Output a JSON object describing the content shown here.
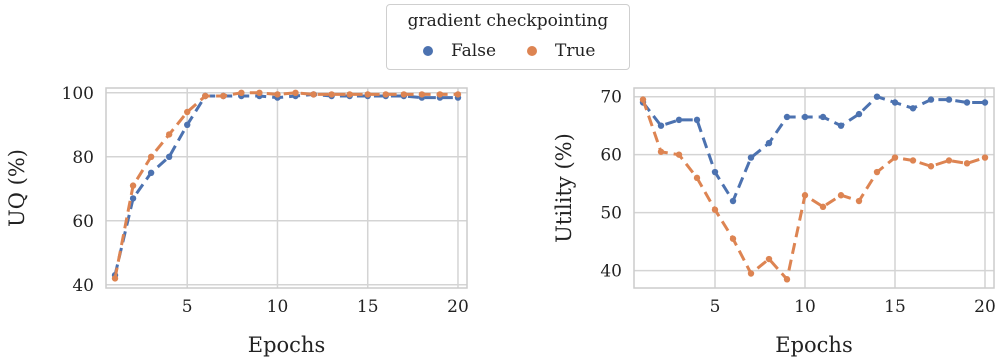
{
  "legend": {
    "title": "gradient checkpointing",
    "entries": [
      {
        "label": "False",
        "color": "#4c72b0"
      },
      {
        "label": "True",
        "color": "#dd8452"
      }
    ]
  },
  "chart_data": [
    {
      "type": "line",
      "xlabel": "Epochs",
      "ylabel": "UQ (%)",
      "xlim": [
        0.5,
        20.5
      ],
      "ylim": [
        39,
        101.5
      ],
      "xticks": [
        5,
        10,
        15,
        20
      ],
      "yticks": [
        40,
        60,
        80,
        100
      ],
      "grid": true,
      "x": [
        1,
        2,
        3,
        4,
        5,
        6,
        7,
        8,
        9,
        10,
        11,
        12,
        13,
        14,
        15,
        16,
        17,
        18,
        19,
        20
      ],
      "series": [
        {
          "name": "False",
          "color": "#4c72b0",
          "values": [
            43,
            67,
            75,
            80,
            90,
            99,
            99,
            99,
            99,
            98.5,
            99,
            99.5,
            99,
            99,
            99,
            99,
            99,
            98.5,
            98.5,
            98.5
          ]
        },
        {
          "name": "True",
          "color": "#dd8452",
          "values": [
            42,
            71,
            80,
            87,
            94,
            99,
            99,
            100,
            100,
            99.5,
            100,
            99.5,
            99.5,
            99.5,
            99.5,
            99.5,
            99.5,
            99.5,
            99.5,
            99.5
          ]
        }
      ]
    },
    {
      "type": "line",
      "xlabel": "Epochs",
      "ylabel": "Utility (%)",
      "xlim": [
        0.5,
        20.5
      ],
      "ylim": [
        37,
        71.5
      ],
      "xticks": [
        5,
        10,
        15,
        20
      ],
      "yticks": [
        40,
        50,
        60,
        70
      ],
      "grid": true,
      "x": [
        1,
        2,
        3,
        4,
        5,
        6,
        7,
        8,
        9,
        10,
        11,
        12,
        13,
        14,
        15,
        16,
        17,
        18,
        19,
        20
      ],
      "series": [
        {
          "name": "False",
          "color": "#4c72b0",
          "values": [
            69,
            65,
            66,
            66,
            57,
            52,
            59.5,
            62,
            66.5,
            66.5,
            66.5,
            65,
            67,
            70,
            69,
            68,
            69.5,
            69.5,
            69,
            69
          ]
        },
        {
          "name": "True",
          "color": "#dd8452",
          "values": [
            69.5,
            60.5,
            60,
            56,
            50.5,
            45.5,
            39.5,
            42,
            38.5,
            53,
            51,
            53,
            52,
            57,
            59.5,
            59,
            58,
            59,
            58.5,
            59.5
          ]
        }
      ]
    }
  ]
}
